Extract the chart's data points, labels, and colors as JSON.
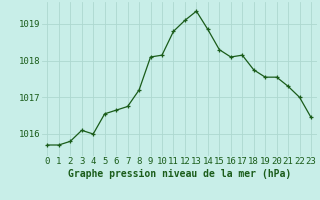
{
  "x": [
    0,
    1,
    2,
    3,
    4,
    5,
    6,
    7,
    8,
    9,
    10,
    11,
    12,
    13,
    14,
    15,
    16,
    17,
    18,
    19,
    20,
    21,
    22,
    23
  ],
  "y": [
    1015.7,
    1015.7,
    1015.8,
    1016.1,
    1016.0,
    1016.55,
    1016.65,
    1016.75,
    1017.2,
    1018.1,
    1018.15,
    1018.8,
    1019.1,
    1019.35,
    1018.85,
    1018.3,
    1018.1,
    1018.15,
    1017.75,
    1017.55,
    1017.55,
    1017.3,
    1017.0,
    1016.45
  ],
  "xlabel": "Graphe pression niveau de la mer (hPa)",
  "ylim": [
    1015.4,
    1019.6
  ],
  "yticks": [
    1016,
    1017,
    1018,
    1019
  ],
  "xticks": [
    0,
    1,
    2,
    3,
    4,
    5,
    6,
    7,
    8,
    9,
    10,
    11,
    12,
    13,
    14,
    15,
    16,
    17,
    18,
    19,
    20,
    21,
    22,
    23
  ],
  "line_color": "#1a5c1a",
  "marker_color": "#1a5c1a",
  "bg_color": "#c8eee8",
  "grid_color": "#add8d0",
  "xlabel_color": "#1a5c1a",
  "xlabel_fontsize": 7.0,
  "tick_fontsize": 6.5,
  "tick_color": "#1a5c1a"
}
